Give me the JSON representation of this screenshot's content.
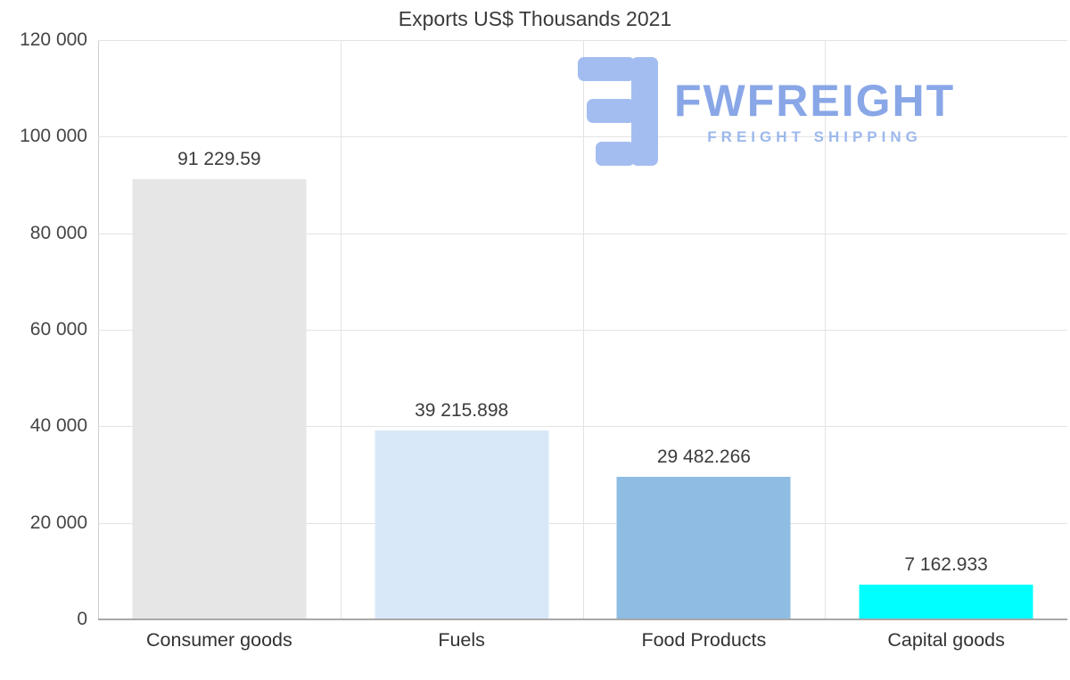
{
  "title": "Exports US$ Thousands 2021",
  "logo": {
    "brand": "FWFREIGHT",
    "tagline": "FREIGHT SHIPPING",
    "mark_color": "#a3bdf0",
    "text_color": "#89a7e7"
  },
  "chart_data": {
    "type": "bar",
    "title": "Exports US$ Thousands 2021",
    "categories": [
      "Consumer goods",
      "Fuels",
      "Food Products",
      "Capital goods"
    ],
    "values": [
      91229.59,
      39215.898,
      29482.266,
      7162.933
    ],
    "value_labels": [
      "91 229.59",
      "39 215.898",
      "29 482.266",
      "7 162.933"
    ],
    "bar_colors": [
      "#e6e6e6",
      "#d9e8f8",
      "#8fbce3",
      "#00ffff"
    ],
    "xlabel": "",
    "ylabel": "",
    "ylim": [
      0,
      120000
    ],
    "yticks": [
      0,
      20000,
      40000,
      60000,
      80000,
      100000,
      120000
    ],
    "ytick_labels": [
      "0",
      "20 000",
      "40 000",
      "60 000",
      "80 000",
      "100 000",
      "120 000"
    ],
    "grid": true,
    "legend": "none"
  }
}
